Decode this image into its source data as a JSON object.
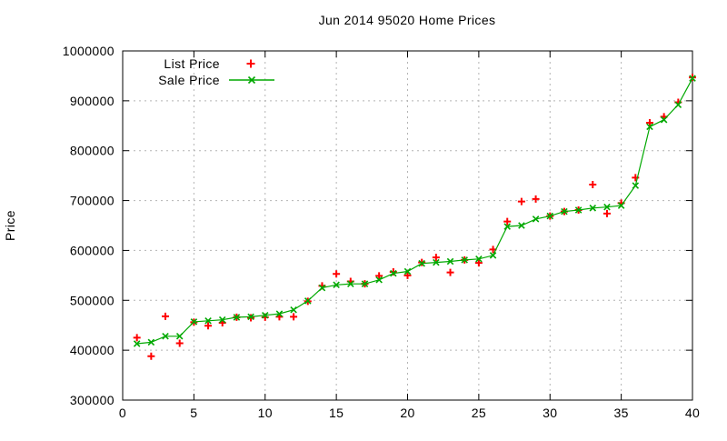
{
  "window": {
    "title": "Jun 2014 95020 Home Prices"
  },
  "colors": {
    "list_price": "#ff0000",
    "sale_price": "#00a800",
    "grid": "#b4b4b4",
    "axis": "#000000",
    "background": "#ffffff",
    "text": "#000000"
  },
  "chart_data": {
    "type": "scatter",
    "title": "Jun 2014 95020 Home Prices",
    "xlabel": "",
    "ylabel": "Price",
    "xlim": [
      0,
      40
    ],
    "ylim": [
      300000,
      1000000
    ],
    "xticks": [
      0,
      5,
      10,
      15,
      20,
      25,
      30,
      35,
      40
    ],
    "yticks": [
      300000,
      400000,
      500000,
      600000,
      700000,
      800000,
      900000,
      1000000
    ],
    "grid": true,
    "grid_style": "dotted-gray",
    "legend_position": "top-left-inside",
    "x": [
      1,
      2,
      3,
      4,
      5,
      6,
      7,
      8,
      9,
      10,
      11,
      12,
      13,
      14,
      15,
      16,
      17,
      18,
      19,
      20,
      21,
      22,
      23,
      24,
      25,
      26,
      27,
      28,
      29,
      30,
      31,
      32,
      33,
      34,
      35,
      36,
      37,
      38,
      39,
      40
    ],
    "series": [
      {
        "name": "List Price",
        "marker": "plus",
        "color": "#ff0000",
        "line": false,
        "values": [
          425000,
          388000,
          468000,
          414000,
          456000,
          449000,
          455000,
          466000,
          465000,
          466000,
          467000,
          467000,
          498000,
          529000,
          553000,
          538000,
          533000,
          549000,
          557000,
          550000,
          576000,
          586000,
          556000,
          581000,
          575000,
          602000,
          658000,
          698000,
          703000,
          669000,
          678000,
          681000,
          732000,
          674000,
          695000,
          746000,
          856000,
          868000,
          897000,
          947000
        ]
      },
      {
        "name": "Sale Price",
        "marker": "x",
        "color": "#00a800",
        "line": true,
        "values": [
          413000,
          416000,
          428000,
          428000,
          457000,
          459000,
          461000,
          466000,
          467000,
          470000,
          473000,
          481000,
          499000,
          525000,
          531000,
          533000,
          533000,
          541000,
          554000,
          558000,
          574000,
          576000,
          578000,
          581000,
          583000,
          590000,
          648000,
          650000,
          663000,
          669000,
          678000,
          681000,
          685000,
          687000,
          690000,
          730000,
          848000,
          862000,
          892000,
          945000
        ]
      }
    ]
  }
}
